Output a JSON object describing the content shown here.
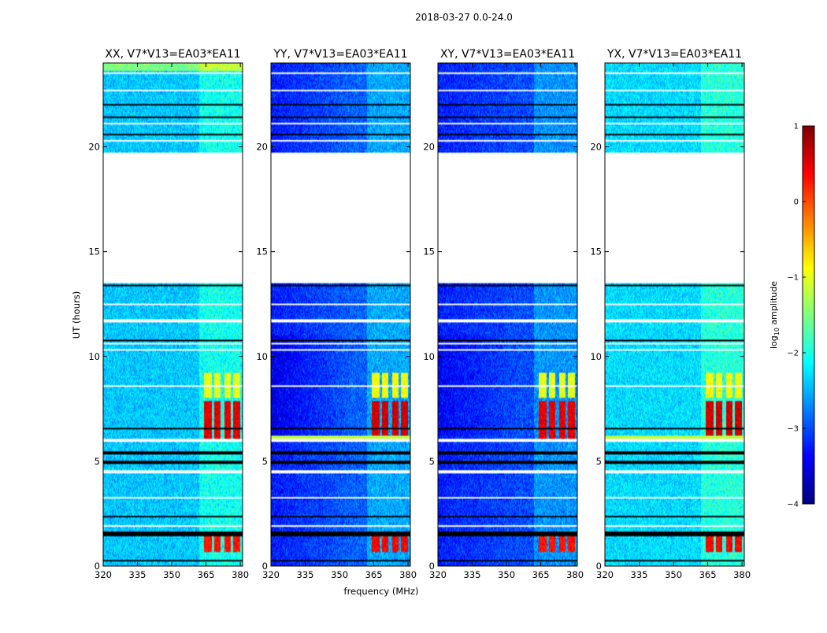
{
  "chart_data": {
    "type": "heatmap",
    "suptitle": "2018-03-27 0.0-24.0",
    "xlabel": "frequency (MHz)",
    "ylabel": "UT (hours)",
    "xlim": [
      320,
      381
    ],
    "ylim": [
      0,
      24
    ],
    "xticks": [
      320,
      335,
      350,
      365,
      380
    ],
    "yticks": [
      0,
      5,
      10,
      15,
      20
    ],
    "panels": [
      {
        "title": "XX, V7*V13=EA03*EA11",
        "pol": "XX",
        "background_log_amp": -2.4,
        "low_band_extra": 0.0
      },
      {
        "title": "YY, V7*V13=EA03*EA11",
        "pol": "YY",
        "background_log_amp": -2.9,
        "low_band_extra": -0.6
      },
      {
        "title": "XY, V7*V13=EA03*EA11",
        "pol": "XY",
        "background_log_amp": -3.0,
        "low_band_extra": -0.4
      },
      {
        "title": "YX, V7*V13=EA03*EA11",
        "pol": "YX",
        "background_log_amp": -2.3,
        "low_band_extra": 0.0
      }
    ],
    "flagged_gap_hours": [
      19.7,
      13.5
    ],
    "bright_channel_groups_mhz": [
      [
        364,
        367.5
      ],
      [
        368.5,
        371.5
      ],
      [
        373,
        376
      ],
      [
        377,
        380
      ]
    ],
    "bright_time_blocks_hours": [
      [
        0.7,
        1.4,
        0.3
      ],
      [
        6.1,
        7.9,
        0.5
      ],
      [
        8.0,
        9.2,
        -1.0
      ]
    ],
    "colorbar": {
      "label_main": "log",
      "label_sub": "10",
      "label_tail": " amplitude",
      "range": [
        -4,
        1
      ],
      "ticks": [
        -4,
        -3,
        -2,
        -1,
        0,
        1
      ],
      "colormap": [
        "#00007f",
        "#0000ff",
        "#007fff",
        "#00ffff",
        "#7fff7f",
        "#ffff00",
        "#ff7f00",
        "#ff0000",
        "#7f0000"
      ]
    }
  }
}
